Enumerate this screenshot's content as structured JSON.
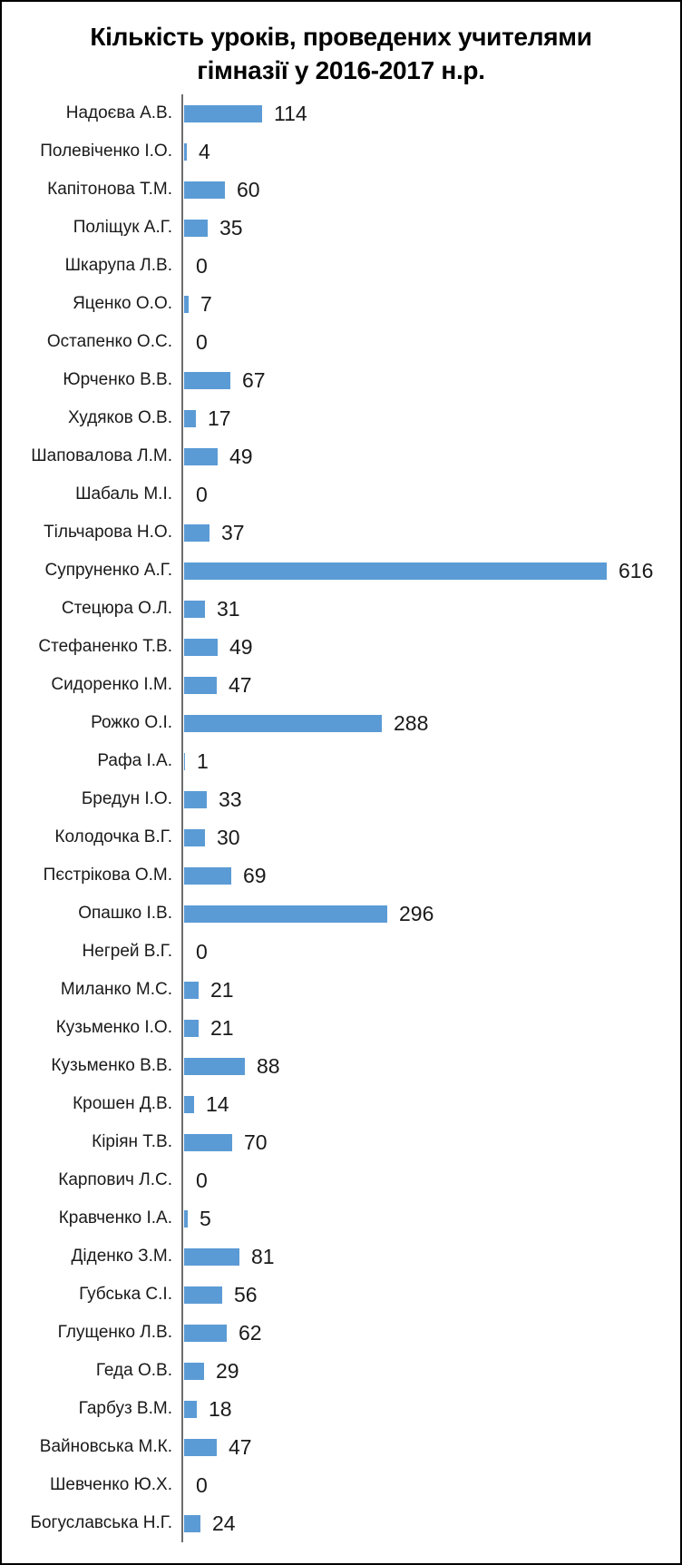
{
  "title_lines": [
    "Кількість уроків, проведених учителями",
    "гімназії у 2016-2017 н.р."
  ],
  "chart_data": {
    "type": "bar",
    "orientation": "horizontal",
    "title": "Кількість уроків, проведених учителями гімназії у 2016-2017 н.р.",
    "xlabel": "",
    "ylabel": "",
    "grid": false,
    "legend": false,
    "data_labels": true,
    "bar_color": "#5b9bd5",
    "axis_color": "#6e6e6e",
    "xlim": [
      0,
      700
    ],
    "categories": [
      "Надоєва А.В.",
      "Полевіченко І.О.",
      "Капітонова Т.М.",
      "Поліщук А.Г.",
      "Шкарупа Л.В.",
      "Яценко О.О.",
      "Остапенко О.С.",
      "Юрченко В.В.",
      "Худяков О.В.",
      "Шаповалова Л.М.",
      "Шабаль М.І.",
      "Тільчарова Н.О.",
      "Супруненко А.Г.",
      "Стецюра О.Л.",
      "Стефаненко Т.В.",
      "Сидоренко І.М.",
      "Рожко О.І.",
      "Рафа І.А.",
      "Бредун І.О.",
      "Колодочка В.Г.",
      "Пєстрікова О.М.",
      "Опашко І.В.",
      "Негрей В.Г.",
      "Миланко М.С.",
      "Кузьменко І.О.",
      "Кузьменко В.В.",
      "Крошен Д.В.",
      "Кіріян Т.В.",
      "Карпович Л.С.",
      "Кравченко І.А.",
      "Діденко З.М.",
      "Губська С.І.",
      "Глущенко Л.В.",
      "Геда О.В.",
      "Гарбуз В.М.",
      "Вайновська М.К.",
      "Шевченко Ю.Х.",
      "Богуславська Н.Г."
    ],
    "values": [
      114,
      4,
      60,
      35,
      0,
      7,
      0,
      67,
      17,
      49,
      0,
      37,
      616,
      31,
      49,
      47,
      288,
      1,
      33,
      30,
      69,
      296,
      0,
      21,
      21,
      88,
      14,
      70,
      0,
      5,
      81,
      56,
      62,
      29,
      18,
      47,
      0,
      24
    ]
  }
}
